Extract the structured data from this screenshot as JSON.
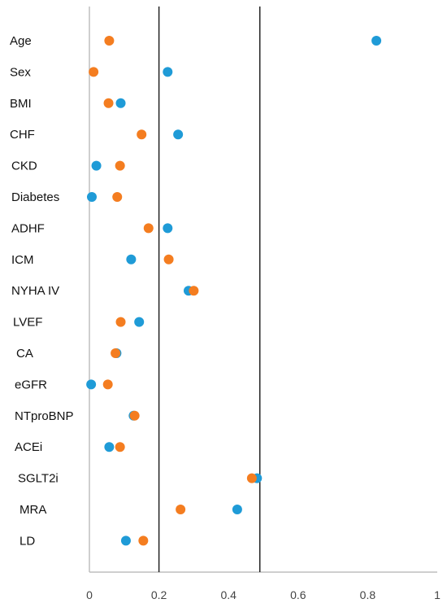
{
  "chart_data": {
    "type": "scatter",
    "title": "",
    "xlabel": "",
    "ylabel": "",
    "xlim": [
      0,
      1
    ],
    "xticks": [
      "0",
      "0.2",
      "0.4",
      "0.6",
      "0.8",
      "1"
    ],
    "grid": false,
    "legend": "none",
    "reference_lines_x": [
      0.2,
      0.49
    ],
    "categories": [
      "Age",
      "Sex",
      "BMI",
      "CHF",
      "CKD",
      "Diabetes",
      "ADHF",
      "ICM",
      "NYHA IV",
      "LVEF",
      "CA",
      "eGFR",
      "NTproBNP",
      "ACEi",
      "SGLT2i",
      "MRA",
      "LD"
    ],
    "series": [
      {
        "color": "#1f9bd7",
        "values": [
          0.825,
          0.225,
          0.09,
          0.255,
          0.02,
          0.007,
          0.225,
          0.12,
          0.285,
          0.143,
          0.078,
          0.005,
          0.127,
          0.057,
          0.482,
          0.425,
          0.105
        ]
      },
      {
        "color": "#f47d20",
        "values": [
          0.057,
          0.012,
          0.055,
          0.15,
          0.088,
          0.08,
          0.17,
          0.228,
          0.3,
          0.09,
          0.075,
          0.053,
          0.13,
          0.088,
          0.467,
          0.262,
          0.155
        ]
      }
    ]
  }
}
